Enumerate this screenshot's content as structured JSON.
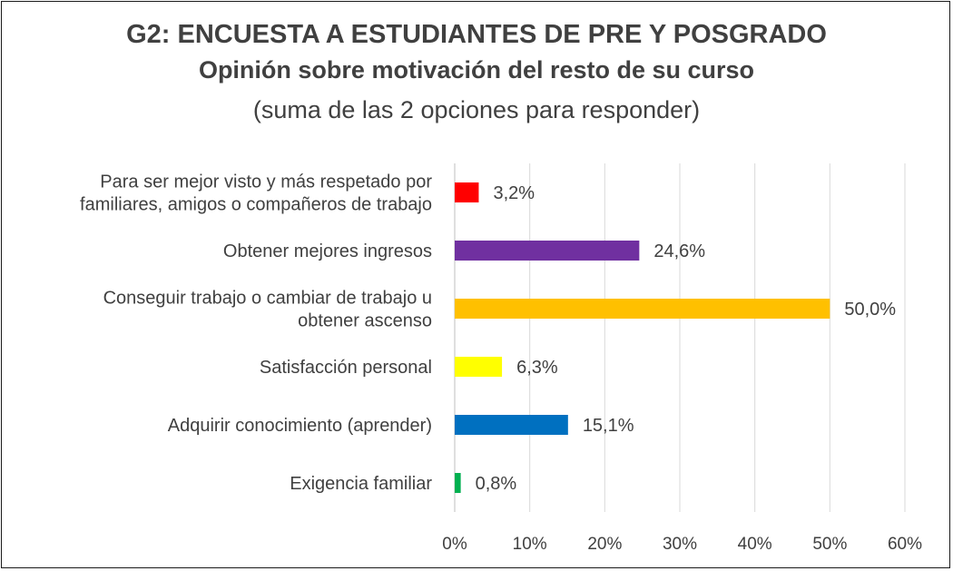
{
  "chart_data": {
    "type": "bar",
    "orientation": "horizontal",
    "title": "G2: ENCUESTA A ESTUDIANTES DE PRE Y POSGRADO",
    "subtitle": "Opinión sobre motivación del resto de su curso",
    "note": "(suma de las 2 opciones para responder)",
    "categories": [
      [
        "Para ser mejor visto y más respetado por",
        "familiares, amigos o compañeros de trabajo"
      ],
      [
        "Obtener mejores ingresos"
      ],
      [
        "Conseguir trabajo o cambiar de trabajo u",
        "obtener ascenso"
      ],
      [
        "Satisfacción personal"
      ],
      [
        "Adquirir conocimiento (aprender)"
      ],
      [
        "Exigencia familiar"
      ]
    ],
    "values": [
      3.2,
      24.6,
      50.0,
      6.3,
      15.1,
      0.8
    ],
    "data_labels": [
      "3,2%",
      "24,6%",
      "50,0%",
      "6,3%",
      "15,1%",
      "0,8%"
    ],
    "colors": [
      "#ff0000",
      "#7030a0",
      "#ffc000",
      "#ffff00",
      "#0070c0",
      "#00b050"
    ],
    "xlim": [
      0,
      60
    ],
    "x_ticks": [
      0,
      10,
      20,
      30,
      40,
      50,
      60
    ],
    "x_tick_labels": [
      "0%",
      "10%",
      "20%",
      "30%",
      "40%",
      "50%",
      "60%"
    ],
    "grid": "vertical",
    "legend": "none"
  }
}
